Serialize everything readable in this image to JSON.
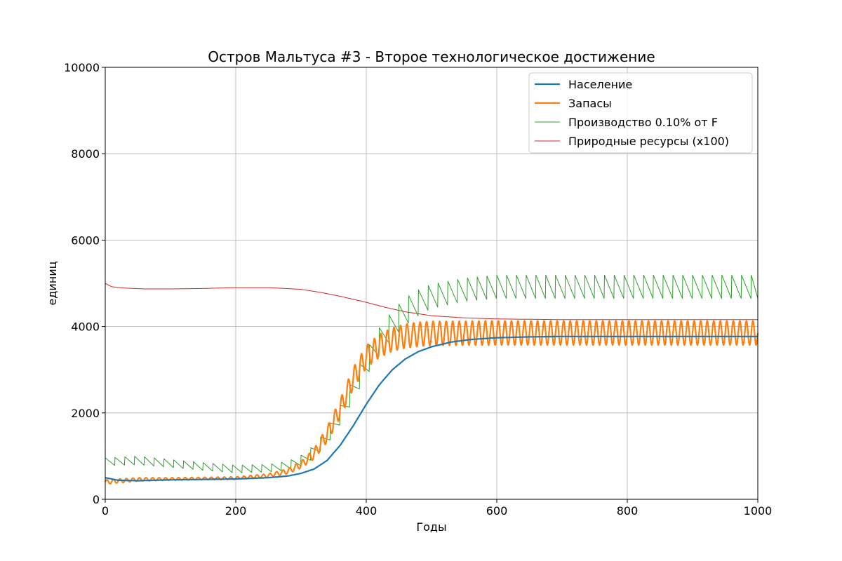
{
  "chart_data": {
    "type": "line",
    "title": "Остров Мальтуса #3 - Второе технологическое достижение",
    "xlabel": "Годы",
    "ylabel": "единиц",
    "xlim": [
      0,
      1000
    ],
    "ylim": [
      0,
      10000
    ],
    "xticks": [
      0,
      200,
      400,
      600,
      800,
      1000
    ],
    "xtick_labels": [
      "0",
      "200",
      "400",
      "600",
      "800",
      "1000"
    ],
    "yticks": [
      0,
      2000,
      4000,
      6000,
      8000,
      10000
    ],
    "ytick_labels": [
      "0",
      "2000",
      "4000",
      "6000",
      "8000",
      "10000"
    ],
    "grid": true,
    "legend_position": "top-right",
    "series": [
      {
        "name": "Население",
        "color": "#1f77b4",
        "line_width": "thick",
        "x": [
          0,
          20,
          50,
          100,
          150,
          200,
          250,
          280,
          300,
          320,
          340,
          360,
          380,
          400,
          420,
          440,
          460,
          480,
          500,
          530,
          560,
          600,
          650,
          700,
          1000
        ],
        "y": [
          500,
          440,
          430,
          450,
          460,
          470,
          500,
          540,
          600,
          700,
          900,
          1250,
          1700,
          2200,
          2650,
          3000,
          3250,
          3420,
          3530,
          3640,
          3700,
          3740,
          3760,
          3770,
          3770
        ]
      },
      {
        "name": "Запасы",
        "color": "#ff7f0e",
        "line_width": "thick",
        "oscillation": true,
        "x": [
          0,
          50,
          100,
          150,
          200,
          250,
          280,
          300,
          320,
          340,
          360,
          380,
          400,
          420,
          440,
          460,
          480,
          500,
          600,
          1000
        ],
        "y": [
          400,
          460,
          470,
          480,
          490,
          550,
          650,
          800,
          1050,
          1500,
          2100,
          2800,
          3300,
          3550,
          3700,
          3780,
          3820,
          3840,
          3850,
          3850
        ],
        "amplitude": [
          50,
          40,
          30,
          30,
          30,
          40,
          60,
          80,
          120,
          180,
          220,
          250,
          260,
          270,
          270,
          280,
          280,
          280,
          280,
          280
        ]
      },
      {
        "name": "Производство  0.10% от F",
        "color": "#2ca02c",
        "line_width": "thin",
        "sawtooth": true,
        "x": [
          0,
          50,
          100,
          150,
          200,
          250,
          280,
          300,
          320,
          340,
          360,
          380,
          400,
          420,
          440,
          460,
          480,
          500,
          550,
          600,
          1000
        ],
        "y": [
          870,
          900,
          830,
          760,
          700,
          720,
          780,
          900,
          1100,
          1450,
          1950,
          2550,
          3150,
          3650,
          4050,
          4350,
          4550,
          4700,
          4850,
          4920,
          4920
        ],
        "amplitude": [
          90,
          100,
          90,
          90,
          90,
          90,
          100,
          120,
          150,
          180,
          220,
          260,
          300,
          320,
          320,
          320,
          300,
          280,
          270,
          270,
          270
        ]
      },
      {
        "name": "Природные ресурсы (x100)",
        "color": "#d62728",
        "line_width": "thin",
        "x": [
          0,
          10,
          30,
          60,
          100,
          150,
          200,
          250,
          300,
          330,
          360,
          400,
          430,
          460,
          500,
          550,
          600,
          700,
          1000
        ],
        "y": [
          5000,
          4920,
          4890,
          4870,
          4870,
          4880,
          4900,
          4900,
          4860,
          4790,
          4700,
          4560,
          4440,
          4340,
          4250,
          4200,
          4175,
          4160,
          4160
        ]
      }
    ]
  }
}
